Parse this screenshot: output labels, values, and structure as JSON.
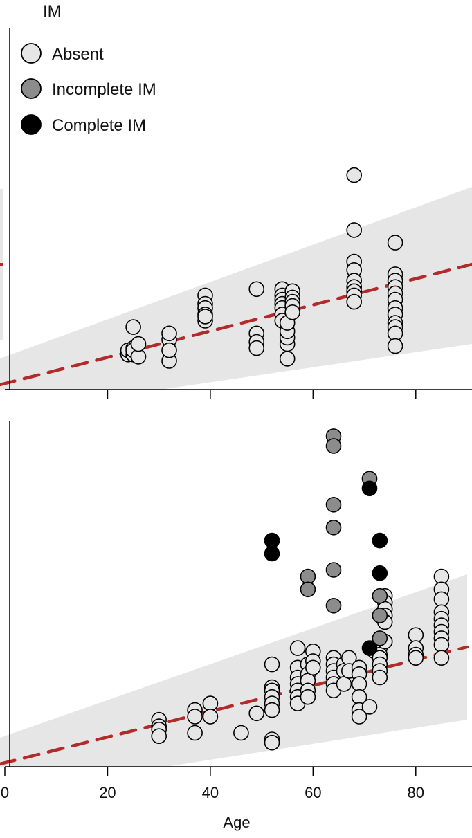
{
  "chart_data": [
    {
      "type": "scatter",
      "title": "IM",
      "xlim": [
        0,
        90
      ],
      "legend": {
        "placement": "top-left",
        "entries": [
          {
            "label": "Absent",
            "color": "#e6e6e6"
          },
          {
            "label": "Incomplete IM",
            "color": "#8c8c8c"
          },
          {
            "label": "Complete IM",
            "color": "#000000"
          }
        ]
      },
      "trend_line": {
        "color": "#b22a2a",
        "style": "dashed"
      },
      "confidence_band": {
        "color": "#e6e6e6"
      },
      "series": [
        {
          "name": "Absent",
          "color": "#e6e6e6",
          "x": [
            24,
            24,
            25,
            25,
            25,
            25,
            26,
            26,
            32,
            32,
            32,
            32,
            39,
            39,
            39,
            39,
            39,
            39,
            49,
            49,
            49,
            49,
            54,
            54,
            54,
            54,
            54,
            54,
            54,
            55,
            55,
            55,
            55,
            55,
            56,
            56,
            56,
            56,
            56,
            68,
            68,
            68,
            68,
            68,
            68,
            68,
            68,
            68,
            76,
            76,
            76,
            76,
            76,
            76,
            76,
            76,
            76,
            76,
            76,
            76
          ],
          "y": [
            0.14,
            0.16,
            0.14,
            0.17,
            0.16,
            0.27,
            0.13,
            0.19,
            0.11,
            0.21,
            0.24,
            0.16,
            0.42,
            0.38,
            0.36,
            0.33,
            0.3,
            0.32,
            0.45,
            0.24,
            0.2,
            0.17,
            0.45,
            0.42,
            0.4,
            0.38,
            0.36,
            0.33,
            0.3,
            0.12,
            0.19,
            0.22,
            0.25,
            0.29,
            0.44,
            0.41,
            0.39,
            0.37,
            0.34,
            0.99,
            0.73,
            0.58,
            0.54,
            0.49,
            0.46,
            0.44,
            0.42,
            0.39,
            0.67,
            0.52,
            0.49,
            0.46,
            0.43,
            0.4,
            0.36,
            0.33,
            0.29,
            0.27,
            0.24,
            0.18
          ]
        }
      ]
    },
    {
      "type": "scatter",
      "xlabel": "Age",
      "xlim": [
        0,
        90
      ],
      "xticks": [
        "0",
        "20",
        "40",
        "60",
        "80"
      ],
      "trend_line": {
        "color": "#b22a2a",
        "style": "dashed"
      },
      "confidence_band": {
        "color": "#e6e6e6"
      },
      "series": [
        {
          "name": "Absent",
          "color": "#e6e6e6",
          "x": [
            30,
            30,
            30,
            30,
            37,
            37,
            37,
            40,
            40,
            46,
            49,
            52,
            52,
            52,
            52,
            52,
            52,
            52,
            52,
            57,
            57,
            57,
            57,
            57,
            57,
            57,
            59,
            59,
            59,
            59,
            59,
            60,
            60,
            60,
            64,
            64,
            64,
            64,
            64,
            64,
            66,
            66,
            66,
            67,
            67,
            69,
            69,
            69,
            69,
            69,
            69,
            71,
            72,
            73,
            73,
            73,
            73,
            73,
            73,
            73,
            74,
            74,
            74,
            74,
            74,
            74,
            80,
            80,
            80,
            80,
            85,
            85,
            85,
            85,
            85,
            85,
            85,
            85,
            85,
            85
          ],
          "y": [
            0.11,
            0.09,
            0.08,
            0.06,
            0.14,
            0.12,
            0.07,
            0.16,
            0.12,
            0.07,
            0.13,
            0.28,
            0.21,
            0.2,
            0.18,
            0.16,
            0.14,
            0.05,
            0.04,
            0.33,
            0.27,
            0.24,
            0.22,
            0.2,
            0.18,
            0.16,
            0.28,
            0.25,
            0.23,
            0.2,
            0.18,
            0.32,
            0.29,
            0.27,
            0.3,
            0.28,
            0.26,
            0.24,
            0.22,
            0.2,
            0.28,
            0.26,
            0.22,
            0.3,
            0.26,
            0.27,
            0.25,
            0.22,
            0.18,
            0.14,
            0.12,
            0.15,
            0.32,
            0.35,
            0.33,
            0.31,
            0.3,
            0.28,
            0.26,
            0.24,
            0.49,
            0.47,
            0.45,
            0.43,
            0.41,
            0.35,
            0.37,
            0.33,
            0.31,
            0.3,
            0.55,
            0.51,
            0.48,
            0.44,
            0.42,
            0.4,
            0.38,
            0.36,
            0.34,
            0.3
          ]
        },
        {
          "name": "Incomplete IM",
          "color": "#8c8c8c",
          "x": [
            59,
            59,
            64,
            64,
            64,
            64,
            64,
            64,
            71,
            73,
            73,
            73
          ],
          "y": [
            0.55,
            0.51,
            0.98,
            0.95,
            0.77,
            0.7,
            0.57,
            0.46,
            0.85,
            0.49,
            0.43,
            0.36
          ]
        },
        {
          "name": "Complete IM",
          "color": "#000000",
          "x": [
            52,
            52,
            71,
            71,
            73,
            73
          ],
          "y": [
            0.66,
            0.62,
            0.82,
            0.33,
            0.66,
            0.56
          ]
        }
      ]
    }
  ]
}
